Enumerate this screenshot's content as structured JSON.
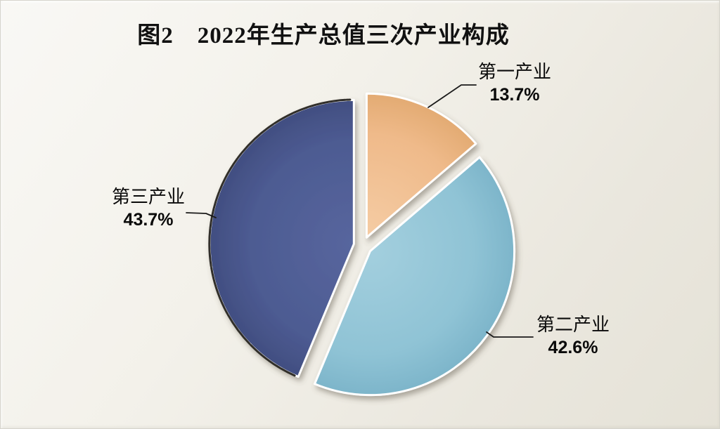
{
  "chart_data": {
    "type": "pie",
    "title": "图2　2022年生产总值三次产业构成",
    "unit": "%",
    "total": 100,
    "slices": [
      {
        "label": "第一产业",
        "value": 13.7,
        "display": "13.7%",
        "color": "#EFBA8A",
        "color_light": "#F5CCA4",
        "color_dark": "#E3AB73"
      },
      {
        "label": "第二产业",
        "value": 42.6,
        "display": "42.6%",
        "color": "#8FC3D5",
        "color_light": "#A3CFDE",
        "color_dark": "#7DB5CA"
      },
      {
        "label": "第三产业",
        "value": 43.7,
        "display": "43.7%",
        "color": "#4D5B92",
        "color_light": "#57669E",
        "color_dark": "#414E81"
      }
    ],
    "layout_hints": {
      "start_angle_deg": 0,
      "direction": "clockwise",
      "exploded": true,
      "legend": "none",
      "labels": "external-callouts-with-leader-lines",
      "grid": false
    }
  },
  "colors": {
    "background_top": "#F9F8F5",
    "background_bottom": "#E5E2D7",
    "leader_line": "#1A1A1A",
    "text": "#000000",
    "slice_outline": "#FFFFFF",
    "dark_slice_rim": "#15120E"
  }
}
